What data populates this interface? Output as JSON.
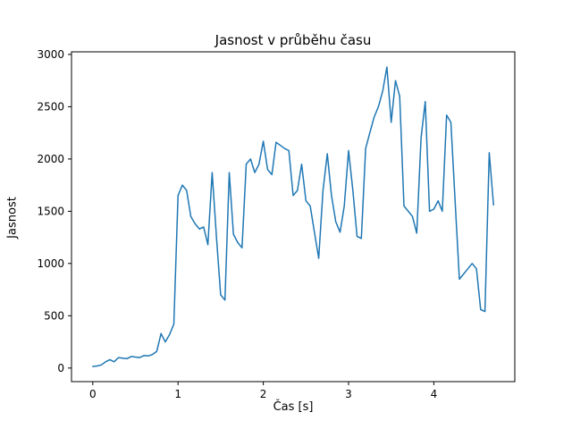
{
  "chart_data": {
    "type": "line",
    "title": "Jasnost v průběhu času",
    "xlabel": "Čas [s]",
    "ylabel": "Jasnost",
    "xlim": [
      -0.25,
      4.95
    ],
    "ylim": [
      -130,
      3025
    ],
    "xticks": [
      0,
      1,
      2,
      3,
      4
    ],
    "yticks": [
      0,
      500,
      1000,
      1500,
      2000,
      2500,
      3000
    ],
    "grid": false,
    "legend": "none",
    "line_color": "#1f77b4",
    "x": [
      0.0,
      0.05,
      0.1,
      0.15,
      0.2,
      0.25,
      0.3,
      0.35,
      0.4,
      0.45,
      0.5,
      0.55,
      0.6,
      0.65,
      0.7,
      0.75,
      0.8,
      0.85,
      0.9,
      0.95,
      1.0,
      1.05,
      1.1,
      1.15,
      1.2,
      1.25,
      1.3,
      1.35,
      1.4,
      1.45,
      1.5,
      1.55,
      1.6,
      1.65,
      1.7,
      1.75,
      1.8,
      1.85,
      1.9,
      1.95,
      2.0,
      2.05,
      2.1,
      2.15,
      2.2,
      2.25,
      2.3,
      2.35,
      2.4,
      2.45,
      2.5,
      2.55,
      2.6,
      2.65,
      2.7,
      2.75,
      2.8,
      2.85,
      2.9,
      2.95,
      3.0,
      3.05,
      3.1,
      3.15,
      3.2,
      3.25,
      3.3,
      3.35,
      3.4,
      3.45,
      3.5,
      3.55,
      3.6,
      3.65,
      3.7,
      3.75,
      3.8,
      3.85,
      3.9,
      3.95,
      4.0,
      4.05,
      4.1,
      4.15,
      4.2,
      4.25,
      4.3,
      4.35,
      4.4,
      4.45,
      4.5,
      4.55,
      4.6,
      4.65,
      4.7
    ],
    "y": [
      15,
      20,
      30,
      60,
      80,
      60,
      100,
      95,
      90,
      110,
      105,
      100,
      120,
      115,
      130,
      160,
      330,
      250,
      320,
      420,
      1650,
      1750,
      1700,
      1450,
      1380,
      1330,
      1350,
      1180,
      1870,
      1250,
      700,
      650,
      1870,
      1280,
      1200,
      1150,
      1950,
      2000,
      1870,
      1950,
      2170,
      1900,
      1850,
      2160,
      2130,
      2100,
      2080,
      1650,
      1700,
      1950,
      1600,
      1550,
      1300,
      1050,
      1700,
      2050,
      1650,
      1400,
      1300,
      1550,
      2080,
      1700,
      1260,
      1240,
      2100,
      2250,
      2400,
      2500,
      2650,
      2880,
      2350,
      2750,
      2600,
      1550,
      1500,
      1450,
      1290,
      2200,
      2550,
      1500,
      1520,
      1600,
      1500,
      2420,
      2350,
      1600,
      850,
      900,
      950,
      1000,
      950,
      560,
      540,
      2060,
      1560
    ]
  }
}
